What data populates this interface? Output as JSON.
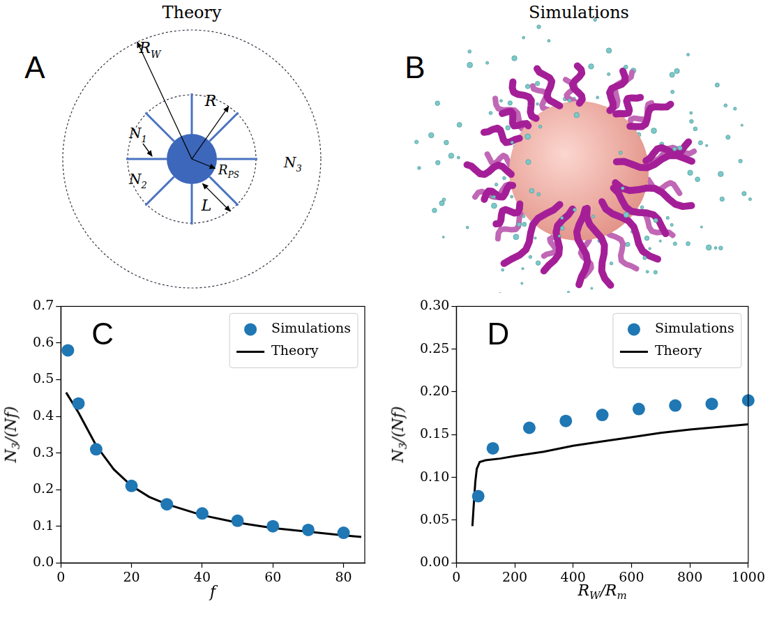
{
  "diagram": {
    "letter": "A",
    "title": "Theory",
    "labels": [
      {
        "base": "R",
        "sub": "W"
      },
      {
        "base": "R"
      },
      {
        "base": "R",
        "sub": "PS"
      },
      {
        "base": "N",
        "sub": "1"
      },
      {
        "base": "N",
        "sub": "2"
      },
      {
        "base": "N",
        "sub": "3"
      },
      {
        "base": "L"
      }
    ]
  },
  "image": {
    "letter": "B",
    "title": "Simulations"
  },
  "chart_data": [
    {
      "panel": "C",
      "type": "scatter",
      "x_label": [
        {
          "text": "f"
        }
      ],
      "y_label": [
        {
          "text": "N"
        },
        {
          "sub": "3"
        },
        {
          "text": "/(Nf)"
        }
      ],
      "xlim": [
        0,
        86
      ],
      "xticks": [
        0,
        20,
        40,
        60,
        80
      ],
      "ylim": [
        0,
        0.7
      ],
      "yticks": [
        {
          "value": 0,
          "label": "0.0"
        },
        {
          "value": 0.1,
          "label": "0.1"
        },
        {
          "value": 0.2,
          "label": "0.2"
        },
        {
          "value": 0.3,
          "label": "0.3"
        },
        {
          "value": 0.4,
          "label": "0.4"
        },
        {
          "value": 0.5,
          "label": "0.5"
        },
        {
          "value": 0.6,
          "label": "0.6"
        },
        {
          "value": 0.7,
          "label": "0.7"
        }
      ],
      "grid": false,
      "legend": "upper right",
      "series": [
        {
          "name": "Simulations",
          "type": "scatter",
          "color": "#1f77b4",
          "marker": "circle",
          "x": [
            2,
            5,
            10,
            20,
            30,
            40,
            50,
            60,
            70,
            80
          ],
          "values": [
            0.58,
            0.435,
            0.31,
            0.21,
            0.16,
            0.135,
            0.115,
            0.1,
            0.09,
            0.082
          ]
        },
        {
          "name": "Theory",
          "type": "line",
          "color": "#000000",
          "line_style": "solid",
          "x": [
            1.5,
            5,
            10,
            15,
            20,
            25,
            30,
            40,
            50,
            60,
            70,
            80,
            85
          ],
          "values": [
            0.465,
            0.41,
            0.32,
            0.255,
            0.21,
            0.18,
            0.16,
            0.13,
            0.11,
            0.095,
            0.085,
            0.075,
            0.071
          ]
        }
      ]
    },
    {
      "panel": "D",
      "type": "scatter",
      "x_label": [
        {
          "text": "R"
        },
        {
          "sub": "W"
        },
        {
          "text": "/R"
        },
        {
          "sub": "m"
        }
      ],
      "y_label": [
        {
          "text": "N"
        },
        {
          "sub": "3"
        },
        {
          "text": "/(Nf)"
        }
      ],
      "xlim": [
        0,
        1000
      ],
      "xticks": [
        0,
        200,
        400,
        600,
        800,
        1000
      ],
      "ylim": [
        0,
        0.3
      ],
      "yticks": [
        {
          "value": 0,
          "label": "0.00"
        },
        {
          "value": 0.05,
          "label": "0.05"
        },
        {
          "value": 0.1,
          "label": "0.10"
        },
        {
          "value": 0.15,
          "label": "0.15"
        },
        {
          "value": 0.2,
          "label": "0.20"
        },
        {
          "value": 0.25,
          "label": "0.25"
        },
        {
          "value": 0.3,
          "label": "0.30"
        }
      ],
      "grid": false,
      "legend": "upper right",
      "series": [
        {
          "name": "Simulations",
          "type": "scatter",
          "color": "#1f77b4",
          "marker": "circle",
          "x": [
            75,
            125,
            250,
            375,
            500,
            625,
            750,
            875,
            1000
          ],
          "values": [
            0.078,
            0.134,
            0.158,
            0.166,
            0.173,
            0.18,
            0.184,
            0.186,
            0.19
          ]
        },
        {
          "name": "Theory",
          "type": "line",
          "color": "#000000",
          "line_style": "solid",
          "x": [
            55,
            60,
            65,
            70,
            80,
            100,
            150,
            200,
            300,
            400,
            500,
            600,
            700,
            800,
            900,
            1000
          ],
          "values": [
            0.043,
            0.07,
            0.095,
            0.11,
            0.118,
            0.12,
            0.122,
            0.125,
            0.13,
            0.137,
            0.142,
            0.147,
            0.152,
            0.156,
            0.159,
            0.162
          ]
        }
      ]
    }
  ]
}
